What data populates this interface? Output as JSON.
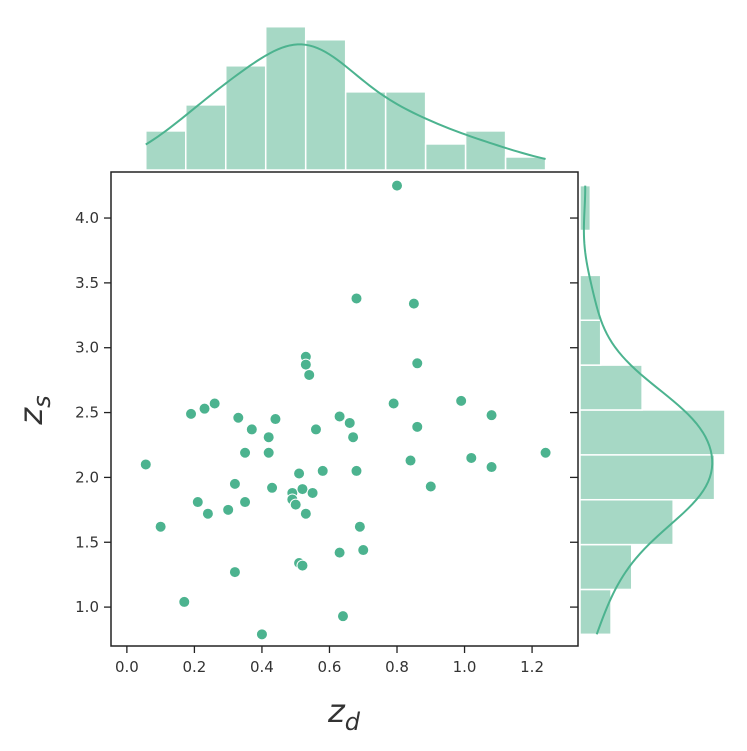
{
  "chart_data": {
    "type": "scatter",
    "xlabel": "z",
    "xlabel_sub": "d",
    "ylabel": "z",
    "ylabel_sub": "s",
    "color": "#4cb38f",
    "hist_color": "#a6d8c5",
    "xlim": [
      -0.047,
      1.336
    ],
    "ylim": [
      0.7,
      4.355
    ],
    "xticks": [
      {
        "value": 0,
        "label": "0.0"
      },
      0.2,
      0.4,
      0.6,
      0.8,
      {
        "value": 1,
        "label": "1.0"
      },
      1.2
    ],
    "yticks": [
      {
        "value": 1,
        "label": "1.0"
      },
      1.5,
      {
        "value": 2,
        "label": "2.0"
      },
      2.5,
      {
        "value": 3,
        "label": "3.0"
      },
      3.5,
      {
        "value": 4,
        "label": "4.0"
      }
    ],
    "x": [
      0.8,
      0.68,
      0.85,
      0.53,
      0.53,
      0.86,
      0.54,
      0.056,
      0.19,
      0.23,
      0.26,
      0.33,
      0.37,
      0.42,
      0.44,
      0.35,
      0.42,
      0.63,
      0.66,
      0.56,
      0.67,
      0.79,
      0.86,
      0.99,
      1.08,
      1.02,
      1.08,
      1.24,
      0.84,
      0.9,
      0.68,
      0.58,
      0.51,
      0.32,
      0.43,
      0.35,
      0.21,
      0.3,
      0.24,
      0.1,
      0.49,
      0.52,
      0.55,
      0.49,
      0.5,
      0.53,
      0.69,
      0.7,
      0.63,
      0.51,
      0.52,
      0.32,
      0.17,
      0.64,
      0.4
    ],
    "y": [
      4.25,
      3.38,
      3.34,
      2.93,
      2.87,
      2.88,
      2.79,
      2.1,
      2.49,
      2.53,
      2.57,
      2.46,
      2.37,
      2.31,
      2.45,
      2.19,
      2.19,
      2.47,
      2.42,
      2.37,
      2.31,
      2.57,
      2.39,
      2.59,
      2.48,
      2.15,
      2.08,
      2.19,
      2.13,
      1.93,
      2.05,
      2.05,
      2.03,
      1.95,
      1.92,
      1.81,
      1.81,
      1.75,
      1.72,
      1.62,
      1.88,
      1.91,
      1.88,
      1.83,
      1.79,
      1.72,
      1.62,
      1.44,
      1.42,
      1.34,
      1.32,
      1.27,
      1.04,
      0.93,
      0.79
    ],
    "top_hist": {
      "bins": [
        0.056,
        0.1744,
        0.2928,
        0.4112,
        0.5296,
        0.648,
        0.7664,
        0.8848,
        1.0032,
        1.1216,
        1.24
      ],
      "counts": [
        3,
        5,
        8,
        11,
        10,
        6,
        6,
        2,
        3,
        1
      ],
      "ylim": [
        0,
        11.9
      ]
    },
    "right_hist": {
      "bins": [
        0.79,
        1.136,
        1.482,
        1.828,
        2.174,
        2.52,
        2.866,
        3.212,
        3.558,
        3.904,
        4.25
      ],
      "counts": [
        3,
        5,
        9,
        13,
        14,
        6,
        2,
        2,
        0,
        1
      ],
      "xlim": [
        0,
        14.2
      ]
    }
  }
}
